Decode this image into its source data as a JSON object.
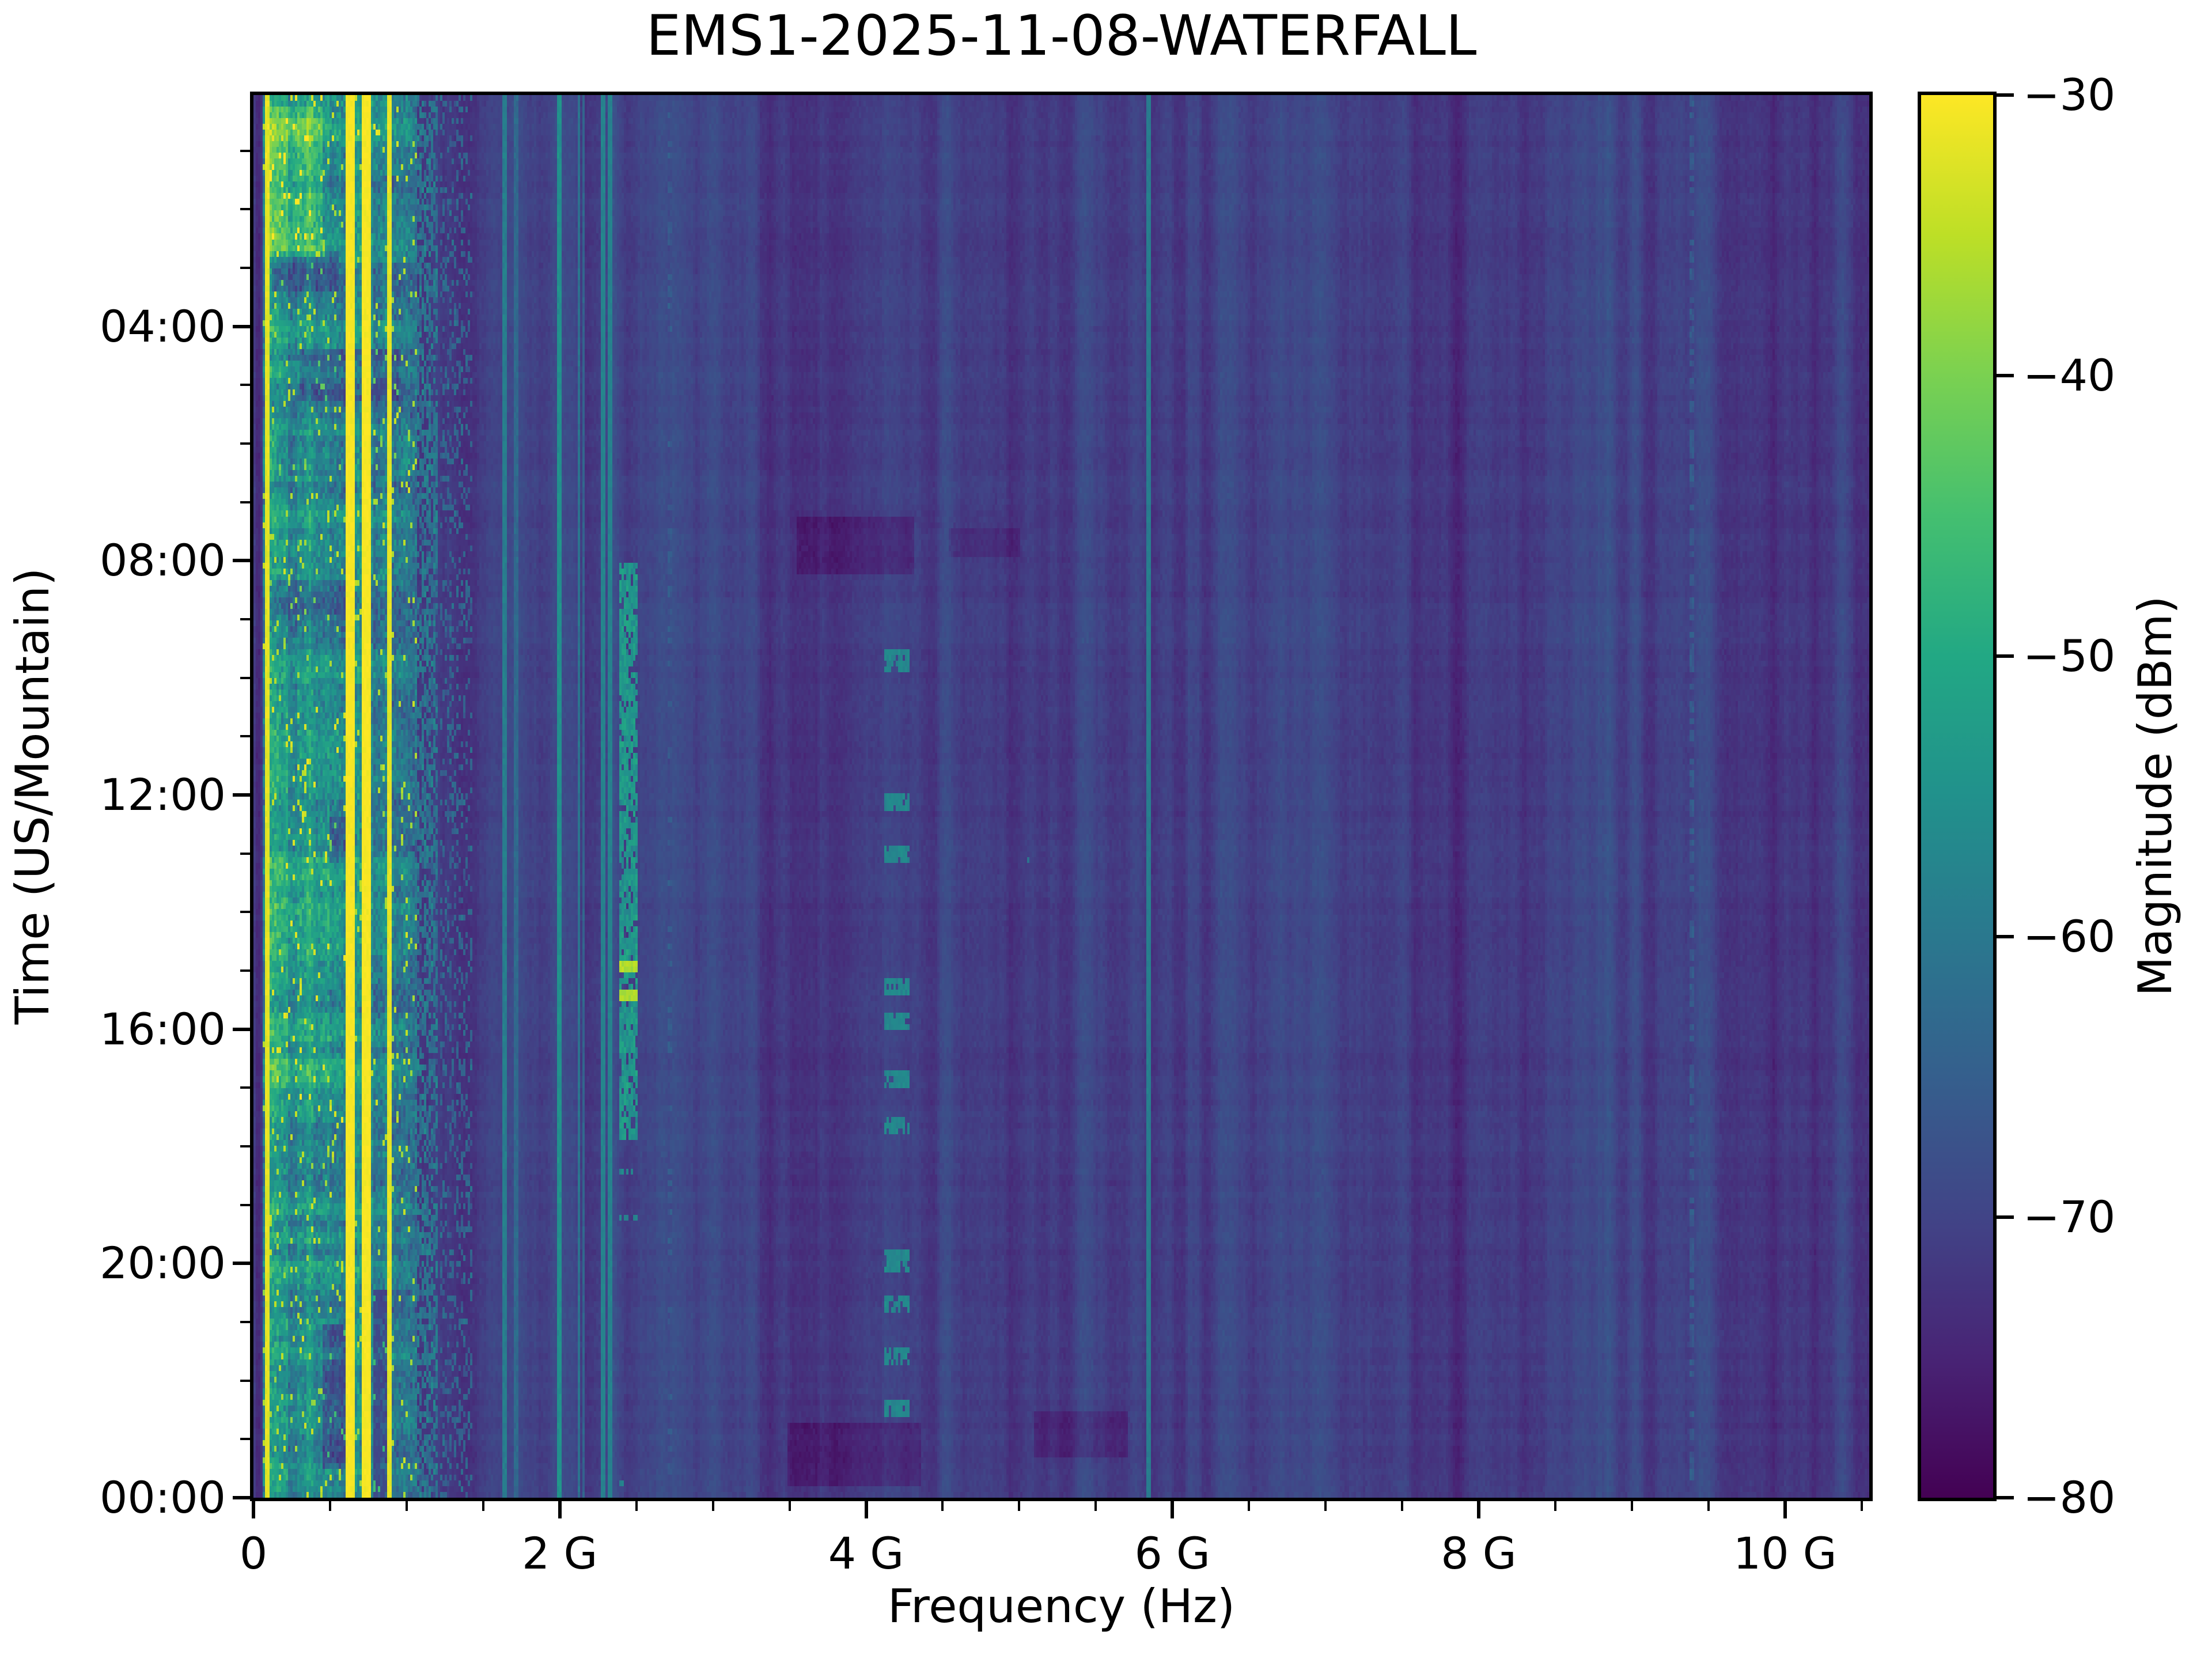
{
  "chart_data": {
    "type": "heatmap",
    "title": "EMS1-2025-11-08-WATERFALL",
    "xlabel": "Frequency (Hz)",
    "ylabel": "Time (US/Mountain)",
    "x_axis": {
      "unit": "GHz",
      "range": [
        0,
        10.55
      ],
      "major": [
        {
          "f": 0,
          "label": "0"
        },
        {
          "f": 2,
          "label": "2 G"
        },
        {
          "f": 4,
          "label": "4 G"
        },
        {
          "f": 6,
          "label": "6 G"
        },
        {
          "f": 8,
          "label": "8 G"
        },
        {
          "f": 10,
          "label": "10 G"
        }
      ],
      "minor": [
        0.5,
        1,
        1.5,
        2.5,
        3,
        3.5,
        4.5,
        5,
        5.5,
        6.5,
        7,
        7.5,
        8.5,
        9,
        9.5,
        10.5
      ]
    },
    "y_axis": {
      "unit": "hours",
      "range": [
        0.05,
        24
      ],
      "major": [
        {
          "t": 4,
          "label": "04:00"
        },
        {
          "t": 8,
          "label": "08:00"
        },
        {
          "t": 12,
          "label": "12:00"
        },
        {
          "t": 16,
          "label": "16:00"
        },
        {
          "t": 20,
          "label": "20:00"
        },
        {
          "t": 24,
          "label": "00:00"
        }
      ],
      "minor": [
        1,
        2,
        3,
        5,
        6,
        7,
        9,
        10,
        11,
        13,
        14,
        15,
        17,
        18,
        19,
        21,
        22,
        23
      ]
    },
    "colorbar": {
      "label": "Magnitude (dBm)",
      "range": [
        -80,
        -30
      ],
      "ticks": [
        {
          "v": -30,
          "label": "−30"
        },
        {
          "v": -40,
          "label": "−40"
        },
        {
          "v": -50,
          "label": "−50"
        },
        {
          "v": -60,
          "label": "−60"
        },
        {
          "v": -70,
          "label": "−70"
        },
        {
          "v": -80,
          "label": "−80"
        }
      ]
    },
    "colormap": {
      "name": "viridis",
      "stops": [
        [
          0.0,
          "#440154"
        ],
        [
          0.1,
          "#482475"
        ],
        [
          0.2,
          "#414487"
        ],
        [
          0.3,
          "#355f8d"
        ],
        [
          0.4,
          "#2a788e"
        ],
        [
          0.5,
          "#21918c"
        ],
        [
          0.6,
          "#22a884"
        ],
        [
          0.7,
          "#44bf70"
        ],
        [
          0.8,
          "#7ad151"
        ],
        [
          0.9,
          "#bddf26"
        ],
        [
          1.0,
          "#fde725"
        ]
      ]
    },
    "render": {
      "seed": 20251108,
      "grid": {
        "cols": 702,
        "rows": 243
      },
      "noise_floor_dbm": -70.5,
      "noise_sigma": 1.2,
      "column_band_amp": 2.2,
      "broad_bands": [
        {
          "f0": 0.0,
          "f1": 0.06,
          "dv": -4
        },
        {
          "f0": 1.45,
          "f1": 2.4,
          "dv": 1.2
        },
        {
          "f0": 2.55,
          "f1": 2.95,
          "dv": 1.0
        },
        {
          "f0": 3.3,
          "f1": 3.75,
          "dv": -1.8
        },
        {
          "f0": 4.35,
          "f1": 4.62,
          "dv": 1.2
        },
        {
          "f0": 5.05,
          "f1": 5.35,
          "dv": -1.2
        },
        {
          "f0": 6.25,
          "f1": 6.55,
          "dv": 1.0
        },
        {
          "f0": 7.0,
          "f1": 7.3,
          "dv": 0.8
        },
        {
          "f0": 7.6,
          "f1": 8.05,
          "dv": -1.3
        },
        {
          "f0": 8.3,
          "f1": 8.6,
          "dv": 0.7
        },
        {
          "f0": 8.85,
          "f1": 9.25,
          "dv": -1.0
        },
        {
          "f0": 9.55,
          "f1": 10.15,
          "dv": -1.6
        },
        {
          "f0": 10.2,
          "f1": 10.55,
          "dv": 0.6
        }
      ],
      "left_band": {
        "f0": 0.06,
        "f1": 1.06,
        "base": -56,
        "sigma": 7,
        "col_noise": 3,
        "row_mod_amp": 4.5,
        "flecks": 0.045,
        "cols": [
          {
            "f0": 0.06,
            "f1": 0.1,
            "dv": -2
          },
          {
            "f0": 0.1,
            "f1": 0.22,
            "dv": 4
          },
          {
            "f0": 0.22,
            "f1": 0.29,
            "dv": -2
          },
          {
            "f0": 0.29,
            "f1": 0.38,
            "dv": 2
          },
          {
            "f0": 0.38,
            "f1": 0.5,
            "dv": 1
          },
          {
            "f0": 0.5,
            "f1": 0.62,
            "dv": -3
          },
          {
            "f0": 0.62,
            "f1": 0.78,
            "dv": 1
          },
          {
            "f0": 0.78,
            "f1": 0.88,
            "dv": -3
          },
          {
            "f0": 0.88,
            "f1": 1.06,
            "dv": -5
          }
        ],
        "patches": [
          {
            "f0": 0.07,
            "f1": 0.45,
            "t0": 0.2,
            "t1": 2.8,
            "dv": 8
          },
          {
            "f0": 0.07,
            "f1": 0.6,
            "t0": 10.2,
            "t1": 17.6,
            "dv": 2.5
          },
          {
            "f0": 0.12,
            "f1": 0.55,
            "t0": 2.7,
            "t1": 3.4,
            "dv": -7
          },
          {
            "f0": 0.3,
            "f1": 0.95,
            "t0": 4.4,
            "t1": 5.3,
            "dv": -6
          },
          {
            "f0": 0.15,
            "f1": 0.95,
            "t0": 5.9,
            "t1": 6.6,
            "dv": -5
          },
          {
            "f0": 0.1,
            "f1": 0.6,
            "t0": 8.3,
            "t1": 8.9,
            "dv": -4
          },
          {
            "f0": 0.5,
            "f1": 0.63,
            "t0": 12.4,
            "t1": 13.2,
            "dv": -8
          },
          {
            "f0": 0.45,
            "f1": 0.63,
            "t0": 21.0,
            "t1": 23.5,
            "dv": -9
          },
          {
            "f0": 0.78,
            "f1": 0.87,
            "t0": 20.5,
            "t1": 24.0,
            "dv": -10
          },
          {
            "f0": 0.06,
            "f1": 1.06,
            "t0": 0.05,
            "t1": 0.8,
            "dv": 3
          }
        ]
      },
      "speckle_bands": [
        {
          "f0": 1.03,
          "f1": 1.2,
          "base": -61,
          "sigma": 6,
          "duty": 0.6
        },
        {
          "f0": 1.22,
          "f1": 1.42,
          "base": -64,
          "sigma": 4,
          "duty": 0.25
        }
      ],
      "cw_lines": [
        {
          "f": 0.095,
          "w": 0.018,
          "v": -32,
          "sigma": 1.5
        },
        {
          "f": 0.63,
          "w": 0.045,
          "v": -30.5,
          "sigma": 1
        },
        {
          "f": 0.735,
          "w": 0.05,
          "v": -30.5,
          "sigma": 1
        },
        {
          "f": 0.885,
          "w": 0.02,
          "v": -32,
          "sigma": 1.5
        },
        {
          "f": 1.635,
          "w": 0.012,
          "v": -59,
          "sigma": 2
        },
        {
          "f": 1.71,
          "w": 0.01,
          "v": -63,
          "sigma": 2
        },
        {
          "f": 1.995,
          "w": 0.012,
          "v": -55,
          "sigma": 2
        },
        {
          "f": 2.125,
          "w": 0.01,
          "v": -61,
          "sigma": 2
        },
        {
          "f": 2.16,
          "w": 0.008,
          "v": -64,
          "sigma": 2
        },
        {
          "f": 2.29,
          "w": 0.012,
          "v": -58,
          "sigma": 1.5
        },
        {
          "f": 2.335,
          "w": 0.012,
          "v": -58,
          "sigma": 1.5
        },
        {
          "f": 2.72,
          "w": 0.01,
          "v": -66,
          "sigma": 2.5,
          "duty": 0.25
        },
        {
          "f": 5.845,
          "w": 0.01,
          "v": -59,
          "sigma": 1.5
        },
        {
          "f": 9.39,
          "w": 0.01,
          "v": -66,
          "sigma": 2.5,
          "duty": 0.5
        }
      ],
      "wifi_band": {
        "f0": 2.4,
        "f1": 2.5,
        "t0": 8.1,
        "t1": 17.85,
        "base": -54,
        "sigma": 5,
        "duty": 0.85,
        "hot_rows": [
          {
            "t": 14.85,
            "v": -36
          },
          {
            "t": 15.4,
            "v": -36
          }
        ],
        "blips": [
          18.4,
          19.2,
          23.45,
          23.8
        ]
      },
      "dash_column": {
        "f0": 4.13,
        "f1": 4.28,
        "v": -57,
        "sigma": 2,
        "dur": 0.22,
        "times": [
          9.6,
          12.05,
          12.9,
          15.2,
          15.75,
          16.75,
          17.55,
          19.85,
          20.6,
          21.45,
          22.35
        ]
      },
      "dots": [
        {
          "f": 5.06,
          "t": 13.1,
          "v": -61
        }
      ],
      "dark_patches": [
        {
          "f0": 3.55,
          "f1": 4.3,
          "t0": 7.3,
          "t1": 8.15,
          "dv": -3.5
        },
        {
          "f0": 4.55,
          "f1": 5.0,
          "t0": 7.45,
          "t1": 7.9,
          "dv": -2.5
        },
        {
          "f0": 3.5,
          "f1": 4.35,
          "t0": 22.8,
          "t1": 23.75,
          "dv": -3.5
        },
        {
          "f0": 5.1,
          "f1": 5.7,
          "t0": 22.6,
          "t1": 23.3,
          "dv": -3
        }
      ]
    }
  }
}
